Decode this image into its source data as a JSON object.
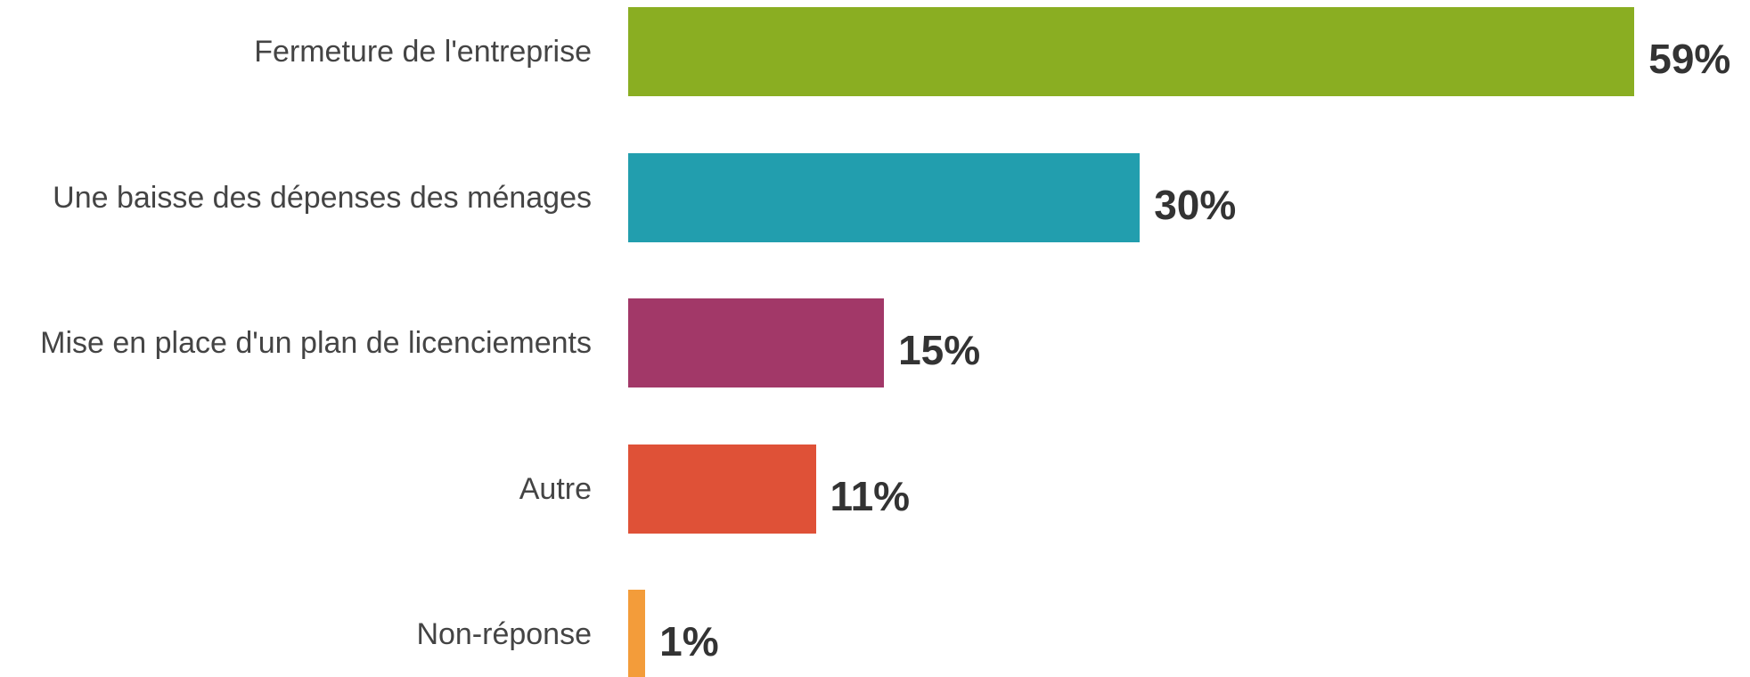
{
  "chart_data": {
    "type": "bar",
    "orientation": "horizontal",
    "categories": [
      "Fermeture de l'entreprise",
      "Une baisse des dépenses des ménages",
      "Mise en place d'un plan de licenciements",
      "Autre",
      "Non-réponse"
    ],
    "values": [
      59,
      30,
      15,
      11,
      1
    ],
    "value_labels": [
      "59%",
      "30%",
      "15%",
      "11%",
      "1%"
    ],
    "colors": [
      "#8aae22",
      "#229eae",
      "#a23868",
      "#df5137",
      "#f39c3a"
    ]
  }
}
